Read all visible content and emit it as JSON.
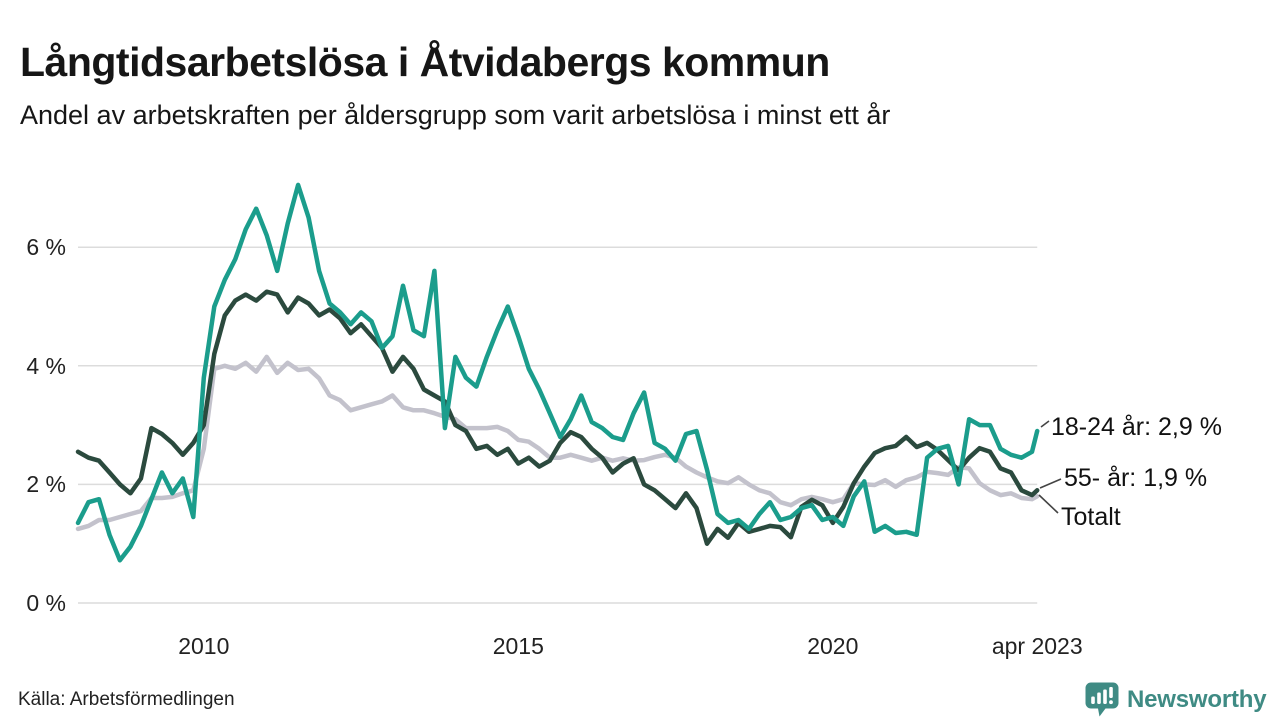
{
  "header": {
    "title": "Långtidsarbetslösa i Åtvidabergs kommun",
    "subtitle": "Andel av arbetskraften per åldersgrupp som varit arbetslösa i minst ett år"
  },
  "footer": {
    "source": "Källa: Arbetsförmedlingen",
    "brand": "Newsworthy",
    "brand_color": "#3f8b84"
  },
  "chart_data": {
    "type": "line",
    "title": "Långtidsarbetslösa i Åtvidabergs kommun",
    "subtitle": "Andel av arbetskraften per åldersgrupp som varit arbetslösa i minst ett år",
    "x_start_year": 2008,
    "x_step_months": 2,
    "x_end_year": 2023.25,
    "x_end_label": "apr 2023",
    "ylim": [
      0,
      7.3
    ],
    "grid": true,
    "grid_color": "#dcdcdc",
    "y_ticks": [
      {
        "value": 0,
        "label": "0 %"
      },
      {
        "value": 2,
        "label": "2 %"
      },
      {
        "value": 4,
        "label": "4 %"
      },
      {
        "value": 6,
        "label": "6 %"
      }
    ],
    "x_ticks": [
      {
        "year": 2010,
        "label": "2010"
      },
      {
        "year": 2015,
        "label": "2015"
      },
      {
        "year": 2020,
        "label": "2020"
      },
      {
        "year": 2023.25,
        "label": "apr 2023"
      }
    ],
    "series": [
      {
        "name": "18-24 år",
        "color": "#1b9d8c",
        "end_label": "18-24 år: 2,9 %",
        "end_value": 2.9,
        "values": [
          1.35,
          1.7,
          1.75,
          1.15,
          0.72,
          0.95,
          1.3,
          1.75,
          2.2,
          1.85,
          2.1,
          1.45,
          3.8,
          5.0,
          5.45,
          5.8,
          6.3,
          6.65,
          6.2,
          5.6,
          6.4,
          7.05,
          6.5,
          5.6,
          5.05,
          4.9,
          4.7,
          4.9,
          4.75,
          4.3,
          4.5,
          5.35,
          4.6,
          4.5,
          5.6,
          2.95,
          4.15,
          3.8,
          3.65,
          4.15,
          4.6,
          5.0,
          4.5,
          3.95,
          3.6,
          3.2,
          2.8,
          3.1,
          3.5,
          3.05,
          2.95,
          2.8,
          2.75,
          3.2,
          3.55,
          2.7,
          2.6,
          2.4,
          2.85,
          2.9,
          2.25,
          1.5,
          1.35,
          1.4,
          1.25,
          1.5,
          1.7,
          1.4,
          1.45,
          1.6,
          1.65,
          1.4,
          1.45,
          1.3,
          1.8,
          2.05,
          1.2,
          1.3,
          1.18,
          1.2,
          1.15,
          2.45,
          2.6,
          2.65,
          2.0,
          3.1,
          3.0,
          3.0,
          2.6,
          2.5,
          2.45,
          2.55,
          2.9
        ]
      },
      {
        "name": "55- år",
        "color": "#2b4a3e",
        "end_label": "55- år: 1,9 %",
        "end_value": 1.9,
        "values": [
          2.55,
          2.45,
          2.4,
          2.2,
          2.0,
          1.85,
          2.1,
          2.95,
          2.85,
          2.7,
          2.5,
          2.7,
          3.0,
          4.2,
          4.85,
          5.1,
          5.2,
          5.1,
          5.25,
          5.2,
          4.9,
          5.15,
          5.05,
          4.85,
          4.95,
          4.8,
          4.55,
          4.7,
          4.5,
          4.3,
          3.9,
          4.15,
          3.95,
          3.6,
          3.5,
          3.4,
          3.0,
          2.9,
          2.6,
          2.65,
          2.5,
          2.6,
          2.35,
          2.45,
          2.3,
          2.4,
          2.7,
          2.88,
          2.8,
          2.6,
          2.45,
          2.2,
          2.35,
          2.44,
          2.0,
          1.9,
          1.75,
          1.6,
          1.85,
          1.6,
          1.0,
          1.25,
          1.1,
          1.35,
          1.2,
          1.25,
          1.3,
          1.28,
          1.11,
          1.62,
          1.74,
          1.65,
          1.35,
          1.62,
          2.02,
          2.3,
          2.53,
          2.61,
          2.65,
          2.8,
          2.63,
          2.7,
          2.58,
          2.41,
          2.24,
          2.45,
          2.61,
          2.55,
          2.27,
          2.2,
          1.9,
          1.82,
          1.9
        ]
      },
      {
        "name": "Totalt",
        "color": "#c3c2cc",
        "end_label": "Totalt",
        "end_value": null,
        "values": [
          1.25,
          1.3,
          1.4,
          1.4,
          1.45,
          1.5,
          1.55,
          1.77,
          1.77,
          1.79,
          1.85,
          1.9,
          2.6,
          3.95,
          4.0,
          3.95,
          4.05,
          3.9,
          4.15,
          3.88,
          4.05,
          3.93,
          3.95,
          3.79,
          3.5,
          3.42,
          3.25,
          3.3,
          3.35,
          3.4,
          3.5,
          3.3,
          3.25,
          3.25,
          3.2,
          3.14,
          3.1,
          2.95,
          2.95,
          2.95,
          2.97,
          2.9,
          2.75,
          2.72,
          2.6,
          2.45,
          2.45,
          2.5,
          2.45,
          2.4,
          2.45,
          2.4,
          2.44,
          2.4,
          2.41,
          2.46,
          2.5,
          2.45,
          2.3,
          2.2,
          2.12,
          2.05,
          2.02,
          2.12,
          2.0,
          1.9,
          1.85,
          1.7,
          1.65,
          1.75,
          1.79,
          1.75,
          1.7,
          1.75,
          2.02,
          2.0,
          1.99,
          2.07,
          1.96,
          2.07,
          2.12,
          2.21,
          2.19,
          2.16,
          2.29,
          2.27,
          2.02,
          1.9,
          1.82,
          1.85,
          1.77,
          1.75,
          1.8
        ]
      }
    ]
  }
}
